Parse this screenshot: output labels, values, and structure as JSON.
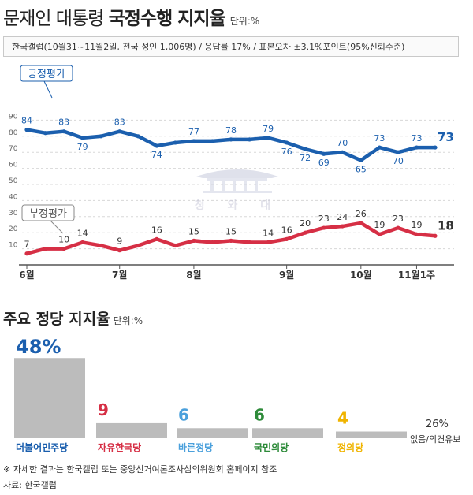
{
  "header": {
    "title_prefix": "문재인 대통령 ",
    "title_main": "국정수행 지지율",
    "unit": "단위:%",
    "source": "한국갤럽(10월31~11월2일, 전국 성인 1,006명) / 응답률 17% / 표본오차 ±3.1%포인트(95%신뢰수준)"
  },
  "watermark": {
    "text": "청 와 대",
    "icon": "blue-house-icon"
  },
  "colors": {
    "positive": "#1b5fae",
    "negative": "#d62f45",
    "grid": "#d8d8d8",
    "bar": "#bcbcbc",
    "axis": "#555555"
  },
  "chart_data": [
    {
      "type": "line",
      "title": "",
      "ylim": [
        0,
        90
      ],
      "yticks": [
        "10",
        "20",
        "30",
        "40",
        "50",
        "60",
        "70",
        "80",
        "90"
      ],
      "xticks": [
        {
          "index": 0,
          "label": "6월"
        },
        {
          "index": 5,
          "label": "7월"
        },
        {
          "index": 9,
          "label": "8월"
        },
        {
          "index": 14,
          "label": "9월"
        },
        {
          "index": 18,
          "label": "10월"
        },
        {
          "index": 21,
          "label": "11월1주"
        }
      ],
      "series": [
        {
          "name": "긍정평가",
          "color": "#1b5fae",
          "values": [
            84,
            82,
            83,
            79,
            80,
            83,
            80,
            74,
            76,
            77,
            77,
            78,
            78,
            79,
            76,
            72,
            69,
            70,
            65,
            73,
            70,
            73,
            73
          ],
          "labels": [
            "84",
            "",
            "83",
            "79",
            "",
            "83",
            "",
            "74",
            "",
            "77",
            "",
            "78",
            "",
            "79",
            "76",
            "72",
            "69",
            "70",
            "65",
            "73",
            "70",
            "73",
            "73"
          ]
        },
        {
          "name": "부정평가",
          "color": "#d62f45",
          "values": [
            7,
            10,
            10,
            14,
            12,
            9,
            12,
            16,
            12,
            15,
            14,
            15,
            14,
            14,
            16,
            20,
            23,
            24,
            26,
            19,
            23,
            19,
            18
          ],
          "labels": [
            "7",
            "",
            "10",
            "14",
            "",
            "9",
            "",
            "16",
            "",
            "15",
            "",
            "15",
            "",
            "14",
            "16",
            "20",
            "23",
            "24",
            "26",
            "19",
            "23",
            "19",
            "18"
          ]
        }
      ]
    },
    {
      "type": "bar",
      "title": "주요 정당 지지율",
      "unit": "단위:%",
      "categories": [
        "더불어민주당",
        "자유한국당",
        "바른정당",
        "국민의당",
        "정의당",
        "없음/의견유보"
      ],
      "values": [
        48,
        9,
        6,
        6,
        4,
        26
      ],
      "value_labels": [
        "48%",
        "9",
        "6",
        "6",
        "4",
        "26%"
      ],
      "colors": [
        "#1b5fae",
        "#d62f45",
        "#4aa0dc",
        "#2e8b3a",
        "#f0b400",
        "#333333"
      ]
    }
  ],
  "footer": {
    "note": "※ 자세한 결과는 한국갤럽 또는 중앙선거여론조사심의위원회 홈페이지 참조",
    "credit": "자료: 한국갤럽"
  }
}
